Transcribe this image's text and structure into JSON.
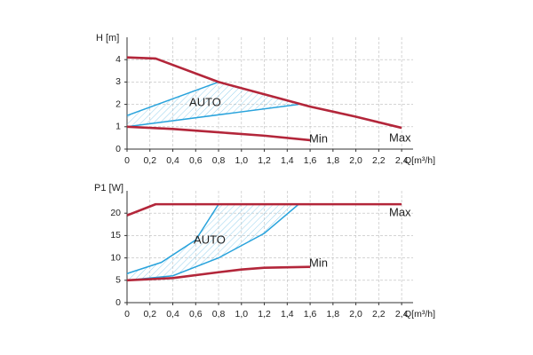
{
  "chart_data": [
    {
      "type": "line",
      "y_label": "H [m]",
      "x_label": "Q[m³/h]",
      "xlim": [
        0,
        2.5
      ],
      "ylim": [
        0,
        5
      ],
      "xticks": [
        0,
        {
          "value": 0.2,
          "label": "0,2"
        },
        {
          "value": 0.4,
          "label": "0,4"
        },
        {
          "value": 0.6,
          "label": "0,6"
        },
        {
          "value": 0.8,
          "label": "0,8"
        },
        {
          "value": 1.0,
          "label": "1,0"
        },
        {
          "value": 1.2,
          "label": "1,2"
        },
        {
          "value": 1.4,
          "label": "1,4"
        },
        {
          "value": 1.6,
          "label": "1,6"
        },
        {
          "value": 1.8,
          "label": "1,8"
        },
        {
          "value": 2.0,
          "label": "2,0"
        },
        {
          "value": 2.2,
          "label": "2,2"
        },
        {
          "value": 2.4,
          "label": "2,4"
        }
      ],
      "yticks": [
        0,
        1,
        2,
        3,
        4
      ],
      "grid": true,
      "series": [
        {
          "name": "Max",
          "color": "#b3263a",
          "x": [
            0,
            0.25,
            0.8,
            1.2,
            1.6,
            2.0,
            2.4
          ],
          "values": [
            4.1,
            4.05,
            3.0,
            2.45,
            1.9,
            1.45,
            0.95
          ]
        },
        {
          "name": "Min",
          "color": "#b3263a",
          "x": [
            0,
            0.4,
            0.8,
            1.2,
            1.6
          ],
          "values": [
            1.0,
            0.9,
            0.75,
            0.6,
            0.4
          ]
        }
      ],
      "auto_zone": {
        "label": "AUTO",
        "color": "#29a3dc",
        "upper": {
          "x": [
            0,
            0.8
          ],
          "values": [
            1.5,
            3.0
          ]
        },
        "lower": {
          "x": [
            0,
            1.5
          ],
          "values": [
            1.0,
            2.0
          ]
        }
      }
    },
    {
      "type": "line",
      "y_label": "P1 [W]",
      "x_label": "Q[m³/h]",
      "xlim": [
        0,
        2.5
      ],
      "ylim": [
        0,
        25
      ],
      "xticks": [
        0,
        {
          "value": 0.2,
          "label": "0,2"
        },
        {
          "value": 0.4,
          "label": "0,4"
        },
        {
          "value": 0.6,
          "label": "0,6"
        },
        {
          "value": 0.8,
          "label": "0,8"
        },
        {
          "value": 1.0,
          "label": "1,0"
        },
        {
          "value": 1.2,
          "label": "1,2"
        },
        {
          "value": 1.4,
          "label": "1,4"
        },
        {
          "value": 1.6,
          "label": "1,6"
        },
        {
          "value": 1.8,
          "label": "1,8"
        },
        {
          "value": 2.0,
          "label": "2,0"
        },
        {
          "value": 2.2,
          "label": "2,2"
        },
        {
          "value": 2.4,
          "label": "2,4"
        }
      ],
      "yticks": [
        0,
        5,
        10,
        15,
        20
      ],
      "grid": true,
      "series": [
        {
          "name": "Max",
          "color": "#b3263a",
          "x": [
            0,
            0.25,
            2.4
          ],
          "values": [
            19.5,
            22,
            22
          ]
        },
        {
          "name": "Min",
          "color": "#b3263a",
          "x": [
            0,
            0.4,
            0.8,
            1.0,
            1.2,
            1.6
          ],
          "values": [
            5,
            5.5,
            6.8,
            7.4,
            7.8,
            8
          ]
        }
      ],
      "auto_zone": {
        "label": "AUTO",
        "color": "#29a3dc",
        "upper": {
          "x": [
            0,
            0.3,
            0.6,
            0.8
          ],
          "values": [
            6.5,
            9,
            14,
            22
          ]
        },
        "lower": {
          "x": [
            0,
            0.4,
            0.8,
            1.2,
            1.5
          ],
          "values": [
            5,
            6,
            10,
            15.5,
            22
          ]
        }
      }
    }
  ]
}
